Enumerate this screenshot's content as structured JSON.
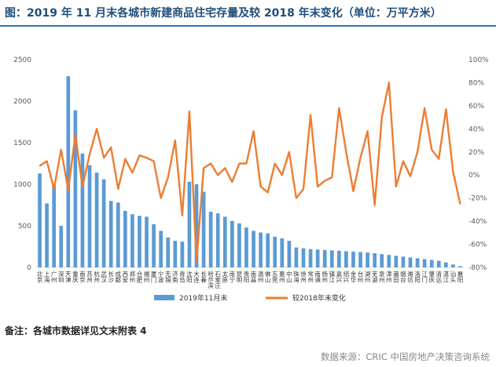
{
  "title": "图：2019 年 11 月末各城市新建商品住宅存量及较 2018 年末变化（单位：万平方米）",
  "note": "备注：各城市数据详见文末附表 4",
  "source": "数据来源：CRIC 中国房地产决策咨询系统",
  "colors": {
    "bar": "#5b9bd5",
    "line": "#ed7d31",
    "grid": "#d9d9d9",
    "axis": "#595959"
  },
  "chart_data": {
    "type": "bar",
    "title": "",
    "categories": [
      "北京",
      "上海",
      "广州",
      "深圳",
      "天津",
      "重庆",
      "南京",
      "苏州",
      "杭州",
      "武汉",
      "长沙",
      "成都",
      "西安",
      "郑州",
      "合肥",
      "福州",
      "厦门",
      "宁波",
      "无锡",
      "济南",
      "青岛",
      "沈阳",
      "大连",
      "长春",
      "哈尔滨",
      "石家庄",
      "太原",
      "南宁",
      "昆明",
      "贵阳",
      "南昌",
      "温州",
      "佛山",
      "东莞",
      "惠州",
      "中山",
      "珠海",
      "徐州",
      "常州",
      "南通",
      "扬州",
      "镇江",
      "嘉兴",
      "绍兴",
      "金华",
      "台州",
      "湖州",
      "芜湖",
      "泉州",
      "漳州",
      "莆田",
      "烟台",
      "潍坊",
      "洛阳",
      "江门",
      "肇庆",
      "清远",
      "湛江",
      "汕头",
      "襄阳"
    ],
    "series": [
      {
        "name": "2019年11月末",
        "axis": "left",
        "type": "bar",
        "values": [
          1130,
          770,
          1000,
          500,
          2300,
          1890,
          1370,
          1230,
          1140,
          1060,
          800,
          780,
          680,
          640,
          620,
          610,
          520,
          440,
          360,
          320,
          310,
          1030,
          1000,
          910,
          670,
          650,
          610,
          560,
          530,
          480,
          440,
          420,
          410,
          370,
          350,
          320,
          240,
          230,
          220,
          215,
          210,
          205,
          200,
          195,
          190,
          185,
          180,
          170,
          160,
          150,
          140,
          130,
          120,
          110,
          100,
          90,
          80,
          60,
          35,
          15
        ]
      },
      {
        "name": "较2018年末变化",
        "axis": "right",
        "type": "line",
        "values": [
          8,
          12,
          -12,
          22,
          -13,
          35,
          -10,
          18,
          40,
          15,
          24,
          -12,
          14,
          2,
          17,
          15,
          12,
          -20,
          -2,
          30,
          -35,
          55,
          -75,
          6,
          10,
          0,
          6,
          -6,
          10,
          10,
          38,
          -10,
          -15,
          10,
          0,
          20,
          -20,
          -12,
          52,
          -10,
          -5,
          -2,
          58,
          20,
          -14,
          15,
          38,
          -26,
          50,
          80,
          -10,
          12,
          -1,
          20,
          58,
          22,
          14,
          57,
          3,
          -25
        ]
      }
    ],
    "ylim_left": [
      0,
      2500
    ],
    "yticks_left": [
      "0",
      "500",
      "1000",
      "1500",
      "2000",
      "2500"
    ],
    "ylim_right": [
      -80,
      100
    ],
    "yticks_right": [
      "-80%",
      "-60%",
      "-40%",
      "-20%",
      "0%",
      "20%",
      "40%",
      "60%",
      "80%",
      "100%"
    ],
    "xlabel": "",
    "ylabel": "",
    "grid": false,
    "legend_position": "bottom"
  }
}
